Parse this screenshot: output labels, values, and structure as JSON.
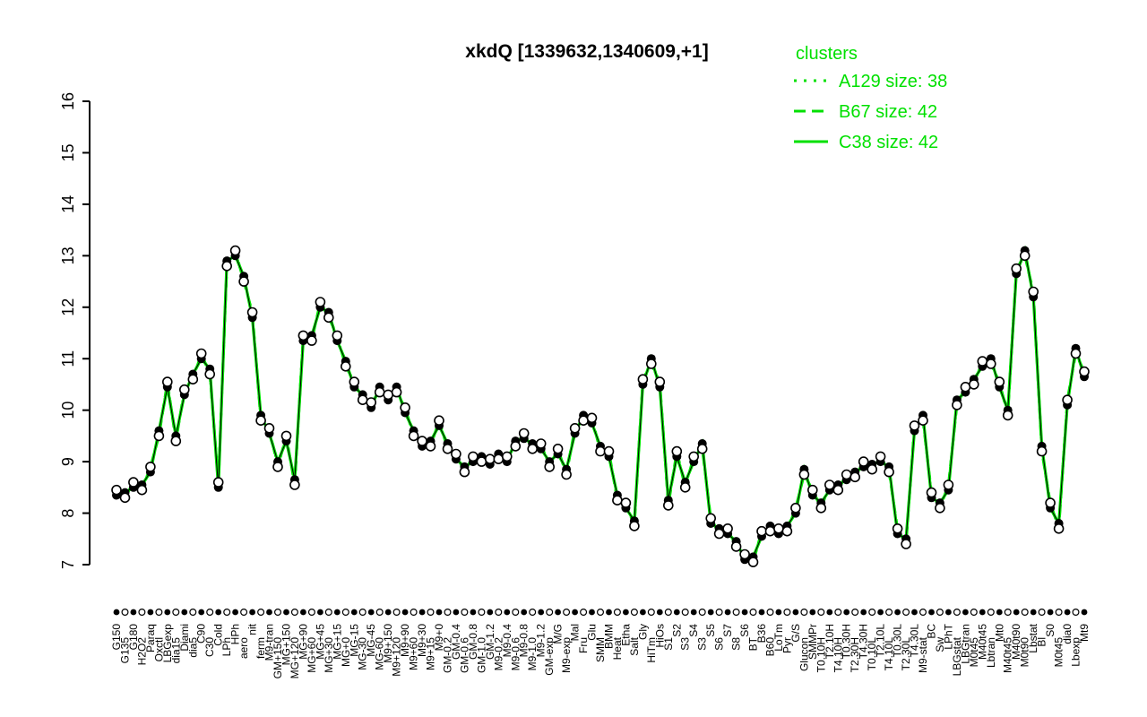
{
  "chart_data": {
    "type": "line+scatter",
    "title": "xkdQ [1339632,1340609,+1]",
    "ylabel": "",
    "xlabel": "",
    "ylim": [
      7,
      16
    ],
    "yticks": [
      7,
      8,
      9,
      10,
      11,
      12,
      13,
      14,
      15,
      16
    ],
    "grid": false,
    "legend_position": "top-right",
    "legend": {
      "title": "clusters",
      "entries": [
        {
          "label": "A129 size: 38",
          "line_style": "dotted"
        },
        {
          "label": "B67 size: 42",
          "line_style": "dashed"
        },
        {
          "label": "C38 size: 42",
          "line_style": "solid"
        }
      ]
    },
    "colors": {
      "cluster_green": "#00E000",
      "point_black": "#000000",
      "point_open_fill": "#FFFFFF",
      "axis": "#000000"
    },
    "categories": [
      "G150",
      "G135",
      "G180",
      "H2O2",
      "Paraq",
      "Oxctl",
      "LBGexp",
      "dia15",
      "Diami",
      "dia5",
      "C90",
      "C30",
      "Cold",
      "LPh",
      "HPh",
      "aero",
      "nit",
      "ferm",
      "M9-tran",
      "GM+150",
      "MG+150",
      "MG+120",
      "MG+90",
      "MG+60",
      "MG+45",
      "MG+30",
      "MG+15",
      "MG+0",
      "MG-15",
      "MG-30",
      "MG-45",
      "MG-60",
      "M9+150",
      "M9+120",
      "M9+90",
      "M9+60",
      "M9+30",
      "M9+15",
      "M9+0",
      "GM-0.2",
      "GM-0.4",
      "GM-0.6",
      "GM-0.8",
      "GM-1.0",
      "GM-1.2",
      "M9-0.2",
      "M9-0.4",
      "M9-0.6",
      "M9-0.8",
      "M9-1.0",
      "M9-1.2",
      "GM-exp",
      "M/G",
      "M9-exp",
      "Mal",
      "Fru",
      "Glu",
      "SMM",
      "BMM",
      "Heat",
      "Etha",
      "Salt",
      "Gly",
      "HiTm",
      "HiOs",
      "S1",
      "S2",
      "S3",
      "S4",
      "S3",
      "S5",
      "S6",
      "S7",
      "S8",
      "S6",
      "BT",
      "B36",
      "B60",
      "LoTm",
      "Pyr",
      "G/S",
      "Glucon",
      "SMMPr",
      "T0.10H",
      "T2.10H",
      "T4.10H",
      "T0.30H",
      "T2.30H",
      "T4.30H",
      "T0.10L",
      "T2.10L",
      "T4.10L",
      "T0.30L",
      "T2.30L",
      "T4.30L",
      "M9-stat",
      "BC",
      "Sw",
      "LPhT",
      "LBGstat",
      "LBGtran",
      "M0t45",
      "M40t45",
      "Lbtran",
      "Mt0",
      "M40t45",
      "M40t90",
      "M0t90",
      "Lbstat",
      "Bl",
      "S0",
      "M0t45",
      "dia0",
      "Lbexp",
      "Mt9"
    ],
    "series": [
      {
        "name": "filled-points",
        "marker": "filled-circle",
        "values": [
          8.35,
          8.4,
          8.5,
          8.55,
          8.8,
          9.6,
          10.45,
          9.5,
          10.3,
          10.7,
          11.0,
          10.8,
          8.5,
          12.9,
          13.0,
          12.6,
          11.8,
          9.9,
          9.55,
          9.0,
          9.4,
          8.65,
          11.35,
          11.45,
          12.0,
          11.9,
          11.35,
          10.95,
          10.45,
          10.3,
          10.05,
          10.45,
          10.2,
          10.45,
          9.95,
          9.6,
          9.3,
          9.4,
          9.7,
          9.35,
          9.05,
          8.9,
          9.0,
          9.1,
          8.95,
          9.15,
          9.0,
          9.4,
          9.45,
          9.35,
          9.25,
          9.0,
          9.15,
          8.85,
          9.55,
          9.9,
          9.75,
          9.3,
          9.1,
          8.35,
          8.1,
          7.85,
          10.5,
          11.0,
          10.45,
          8.25,
          9.1,
          8.6,
          9.0,
          9.35,
          7.8,
          7.7,
          7.6,
          7.45,
          7.1,
          7.15,
          7.55,
          7.75,
          7.6,
          7.75,
          8.0,
          8.85,
          8.35,
          8.2,
          8.45,
          8.55,
          8.65,
          8.8,
          8.9,
          8.95,
          9.0,
          8.9,
          7.6,
          7.5,
          9.6,
          9.9,
          8.3,
          8.2,
          8.45,
          10.2,
          10.35,
          10.6,
          10.85,
          11.0,
          10.45,
          10.0,
          12.65,
          13.1,
          12.2,
          9.3,
          8.1,
          7.8,
          10.1,
          11.2,
          10.65
        ]
      },
      {
        "name": "open-points",
        "marker": "open-circle",
        "values": [
          8.45,
          8.3,
          8.6,
          8.45,
          8.9,
          9.5,
          10.55,
          9.4,
          10.4,
          10.6,
          11.1,
          10.7,
          8.6,
          12.8,
          13.1,
          12.5,
          11.9,
          9.8,
          9.65,
          8.9,
          9.5,
          8.55,
          11.45,
          11.35,
          12.1,
          11.8,
          11.45,
          10.85,
          10.55,
          10.2,
          10.15,
          10.35,
          10.3,
          10.35,
          10.05,
          9.5,
          9.4,
          9.3,
          9.8,
          9.25,
          9.15,
          8.8,
          9.1,
          9.0,
          9.05,
          9.05,
          9.1,
          9.3,
          9.55,
          9.25,
          9.35,
          8.9,
          9.25,
          8.75,
          9.65,
          9.8,
          9.85,
          9.2,
          9.2,
          8.25,
          8.2,
          7.75,
          10.6,
          10.9,
          10.55,
          8.15,
          9.2,
          8.5,
          9.1,
          9.25,
          7.9,
          7.6,
          7.7,
          7.35,
          7.2,
          7.05,
          7.65,
          7.65,
          7.7,
          7.65,
          8.1,
          8.75,
          8.45,
          8.1,
          8.55,
          8.45,
          8.75,
          8.7,
          9.0,
          8.85,
          9.1,
          8.8,
          7.7,
          7.4,
          9.7,
          9.8,
          8.4,
          8.1,
          8.55,
          10.1,
          10.45,
          10.5,
          10.95,
          10.9,
          10.55,
          9.9,
          12.75,
          13.0,
          12.3,
          9.2,
          8.2,
          7.7,
          10.2,
          11.1,
          10.75
        ]
      }
    ]
  }
}
